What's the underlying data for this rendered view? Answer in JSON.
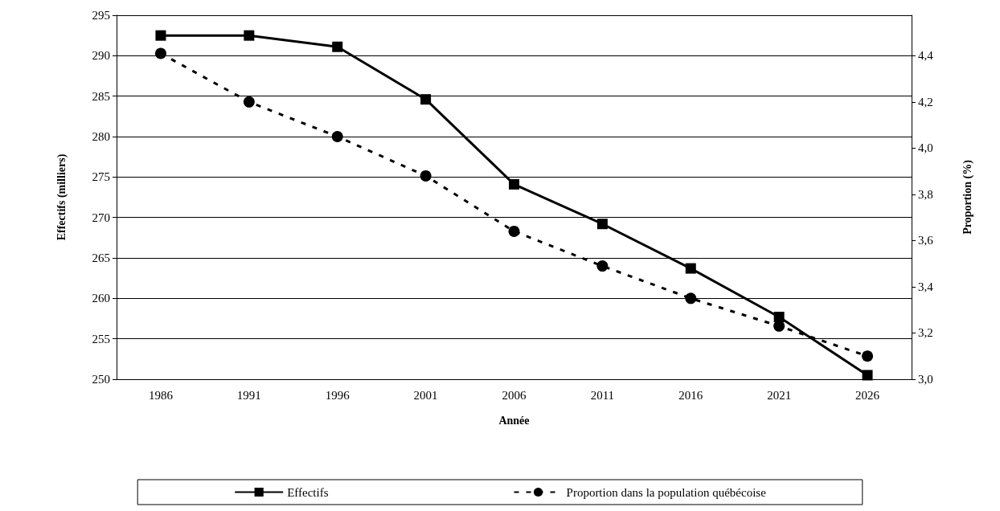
{
  "chart_data": {
    "type": "line",
    "xlabel": "Année",
    "ylabel": "Effectifs (milliers)",
    "y2label": "Proportion (%)",
    "categories": [
      "1986",
      "1991",
      "1996",
      "2001",
      "2006",
      "2011",
      "2016",
      "2021",
      "2026"
    ],
    "series": [
      {
        "name": "Effectifs",
        "color": "#000000",
        "marker": "square",
        "line_style": "solid",
        "values": [
          292.5,
          292.5,
          291.1,
          284.6,
          274.1,
          269.2,
          263.7,
          257.7,
          250.5
        ]
      },
      {
        "name": "Proportion dans la population québécoise",
        "color": "#000000",
        "marker": "circle",
        "line_style": "dashed",
        "axis": "y2",
        "values": [
          4.41,
          4.2,
          4.05,
          3.88,
          3.64,
          3.49,
          3.35,
          3.23,
          3.1
        ]
      }
    ],
    "ylim": [
      250,
      295
    ],
    "yticks": [
      250,
      255,
      260,
      265,
      270,
      275,
      280,
      285,
      290,
      295
    ],
    "y2lim": [
      3.0,
      4.575
    ],
    "y2ticks": [
      {
        "value": 3.0,
        "label": "3,0"
      },
      {
        "value": 3.2,
        "label": "3,2"
      },
      {
        "value": 3.4,
        "label": "3,4"
      },
      {
        "value": 3.6,
        "label": "3,6"
      },
      {
        "value": 3.8,
        "label": "3,8"
      },
      {
        "value": 4.0,
        "label": "4,0"
      },
      {
        "value": 4.2,
        "label": "4,2"
      },
      {
        "value": 4.4,
        "label": "4,4"
      }
    ],
    "grid": "y",
    "legend": "bottom"
  }
}
